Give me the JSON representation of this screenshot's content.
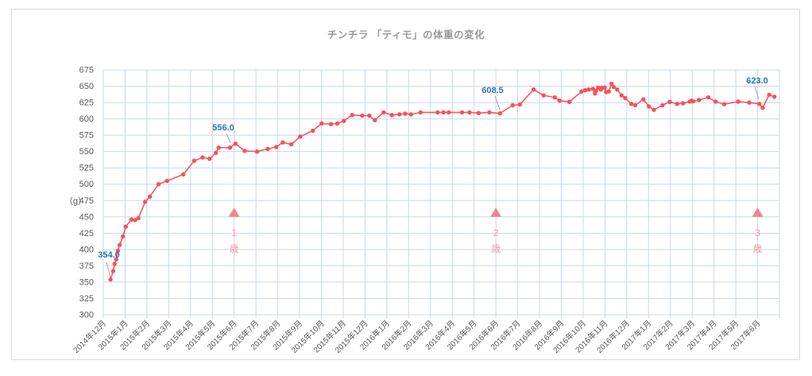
{
  "title": "チンチラ 「ティモ」の体重の変化",
  "chart_data": {
    "type": "line",
    "title": "チンチラ 「ティモ」の体重の変化",
    "xlabel": "",
    "ylabel": "（g）",
    "ylim": [
      300,
      675
    ],
    "ytick_step": 25,
    "grid": true,
    "legend": "none",
    "x_labels": [
      "2014年12月",
      "2015年1月",
      "2015年2月",
      "2015年3月",
      "2015年4月",
      "2015年5月",
      "2015年6月",
      "2015年7月",
      "2015年8月",
      "2015年9月",
      "2015年10月",
      "2015年11月",
      "2015年12月",
      "2016年1月",
      "2016年2月",
      "2016年3月",
      "2016年4月",
      "2016年5月",
      "2016年6月",
      "2016年7月",
      "2016年8月",
      "2016年9月",
      "2016年10月",
      "2016年11月",
      "2016年12月",
      "2017年1月",
      "2017年2月",
      "2017年3月",
      "2017年4月",
      "2017年5月",
      "2017年6月"
    ],
    "series": [
      {
        "name": "体重",
        "x_unit": "months_since_2014-12",
        "points": [
          [
            0.33,
            354
          ],
          [
            0.45,
            367
          ],
          [
            0.52,
            378
          ],
          [
            0.59,
            385
          ],
          [
            0.67,
            398
          ],
          [
            0.75,
            407
          ],
          [
            0.9,
            420
          ],
          [
            1.03,
            435
          ],
          [
            1.29,
            446
          ],
          [
            1.46,
            445
          ],
          [
            1.61,
            448
          ],
          [
            1.92,
            473
          ],
          [
            2.14,
            481
          ],
          [
            2.53,
            500
          ],
          [
            2.92,
            505
          ],
          [
            3.67,
            515
          ],
          [
            4.17,
            536
          ],
          [
            4.55,
            541
          ],
          [
            4.87,
            539
          ],
          [
            5.16,
            548
          ],
          [
            5.29,
            556
          ],
          [
            5.81,
            556
          ],
          [
            6.06,
            562
          ],
          [
            6.48,
            551
          ],
          [
            7.05,
            550
          ],
          [
            7.54,
            554
          ],
          [
            7.93,
            557
          ],
          [
            8.23,
            564
          ],
          [
            8.62,
            561
          ],
          [
            9.03,
            573
          ],
          [
            9.61,
            582
          ],
          [
            10.01,
            593
          ],
          [
            10.44,
            592
          ],
          [
            10.73,
            593
          ],
          [
            11.03,
            597
          ],
          [
            11.41,
            606
          ],
          [
            11.87,
            605
          ],
          [
            12.2,
            605
          ],
          [
            12.45,
            598
          ],
          [
            12.85,
            610
          ],
          [
            13.23,
            606
          ],
          [
            13.58,
            607
          ],
          [
            13.84,
            608
          ],
          [
            14.11,
            607
          ],
          [
            14.55,
            610
          ],
          [
            15.33,
            610
          ],
          [
            15.6,
            610
          ],
          [
            15.84,
            610
          ],
          [
            16.45,
            610
          ],
          [
            16.79,
            610
          ],
          [
            17.21,
            609
          ],
          [
            17.7,
            610
          ],
          [
            18.19,
            608.5
          ],
          [
            18.77,
            621
          ],
          [
            19.1,
            622
          ],
          [
            19.73,
            645
          ],
          [
            20.19,
            636
          ],
          [
            20.7,
            633
          ],
          [
            20.92,
            628
          ],
          [
            21.37,
            626
          ],
          [
            21.93,
            642
          ],
          [
            22.1,
            644
          ],
          [
            22.26,
            645
          ],
          [
            22.45,
            646
          ],
          [
            22.54,
            639
          ],
          [
            22.59,
            643
          ],
          [
            22.69,
            648
          ],
          [
            22.81,
            645
          ],
          [
            22.87,
            648
          ],
          [
            22.99,
            648
          ],
          [
            23.05,
            641
          ],
          [
            23.18,
            642
          ],
          [
            23.3,
            654
          ],
          [
            23.4,
            649
          ],
          [
            23.56,
            645
          ],
          [
            23.76,
            636
          ],
          [
            23.93,
            632
          ],
          [
            24.21,
            623
          ],
          [
            24.39,
            621
          ],
          [
            24.76,
            630
          ],
          [
            25.02,
            619
          ],
          [
            25.24,
            614
          ],
          [
            25.64,
            621
          ],
          [
            25.97,
            626
          ],
          [
            26.31,
            623
          ],
          [
            26.58,
            624
          ],
          [
            26.89,
            626.5
          ],
          [
            26.97,
            628
          ],
          [
            27.05,
            627
          ],
          [
            27.31,
            629
          ],
          [
            27.74,
            633
          ],
          [
            28.07,
            626.5
          ],
          [
            28.47,
            622.5
          ],
          [
            29.11,
            626.5
          ],
          [
            29.62,
            625
          ],
          [
            30.08,
            623
          ],
          [
            30.23,
            617
          ],
          [
            30.53,
            637
          ],
          [
            30.77,
            634
          ]
        ]
      }
    ],
    "point_labels": [
      {
        "text": "354.0",
        "m": 0.33,
        "value": 354,
        "label_x": 137,
        "label_y": 324,
        "leader": [
          134,
          330,
          139,
          349
        ]
      },
      {
        "text": "556.0",
        "m": 5.81,
        "value": 556,
        "label_x": 281,
        "label_y": 164,
        "leader": [
          285,
          168,
          290,
          180
        ]
      },
      {
        "text": "608.5",
        "m": 18.19,
        "value": 608.5,
        "label_x": 620,
        "label_y": 117,
        "leader": [
          623,
          121,
          629,
          138
        ]
      },
      {
        "text": "623.0",
        "m": 30.08,
        "value": 623,
        "label_x": 953,
        "label_y": 105,
        "leader": [
          950,
          109,
          955,
          125
        ]
      }
    ],
    "age_markers": [
      {
        "m": 6,
        "number": "1",
        "suffix": "歳"
      },
      {
        "m": 18,
        "number": "2",
        "suffix": "歳"
      },
      {
        "m": 30,
        "number": "3",
        "suffix": "歳"
      }
    ],
    "colors": {
      "line": "#f8595c",
      "marker": "#f8505a",
      "grid": "#c5d8ee",
      "axis_text": "#595959",
      "title": "#9a9a9a",
      "data_label": "#2e75b6",
      "leader": "#a6a6a6",
      "age_marker": "#f0868c",
      "age_text": "#f29aa0",
      "outer_border": "#d9d9d9",
      "background": "#ffffff"
    }
  }
}
